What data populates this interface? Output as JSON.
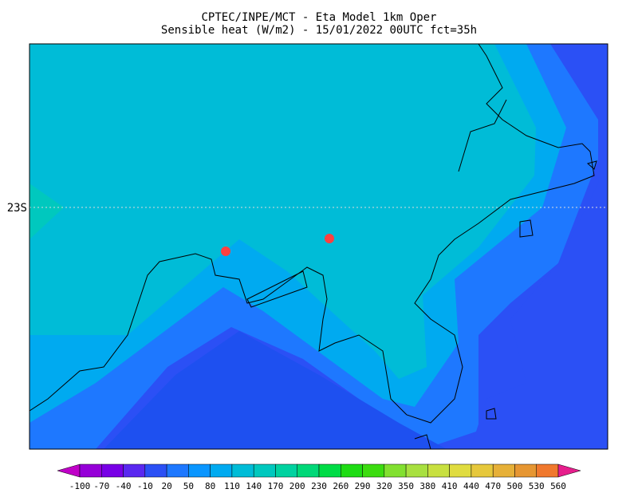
{
  "header": {
    "line1": "CPTEC/INPE/MCT -  Eta Model 1km Oper",
    "line2": "Sensible heat (W/m2) - 15/01/2022 00UTC fct=35h"
  },
  "map": {
    "lat_label": "23S"
  },
  "colorbar": {
    "labels": [
      -100,
      -70,
      -40,
      -10,
      20,
      50,
      80,
      110,
      140,
      170,
      200,
      230,
      260,
      290,
      320,
      350,
      380,
      410,
      440,
      470,
      500,
      530,
      560
    ],
    "colors": [
      "#c000c8",
      "#9600d8",
      "#7800e6",
      "#5a28f0",
      "#2b50f5",
      "#1e78ff",
      "#0a96ff",
      "#00aaf0",
      "#00bcd7",
      "#00c8be",
      "#00d2a0",
      "#00d878",
      "#00dc46",
      "#1edc14",
      "#3cdc10",
      "#82e030",
      "#a8e040",
      "#c8e040",
      "#e0dc40",
      "#e6c83c",
      "#e6b038",
      "#e69632",
      "#f0782d",
      "#f05a3c",
      "#e61e8c"
    ]
  }
}
